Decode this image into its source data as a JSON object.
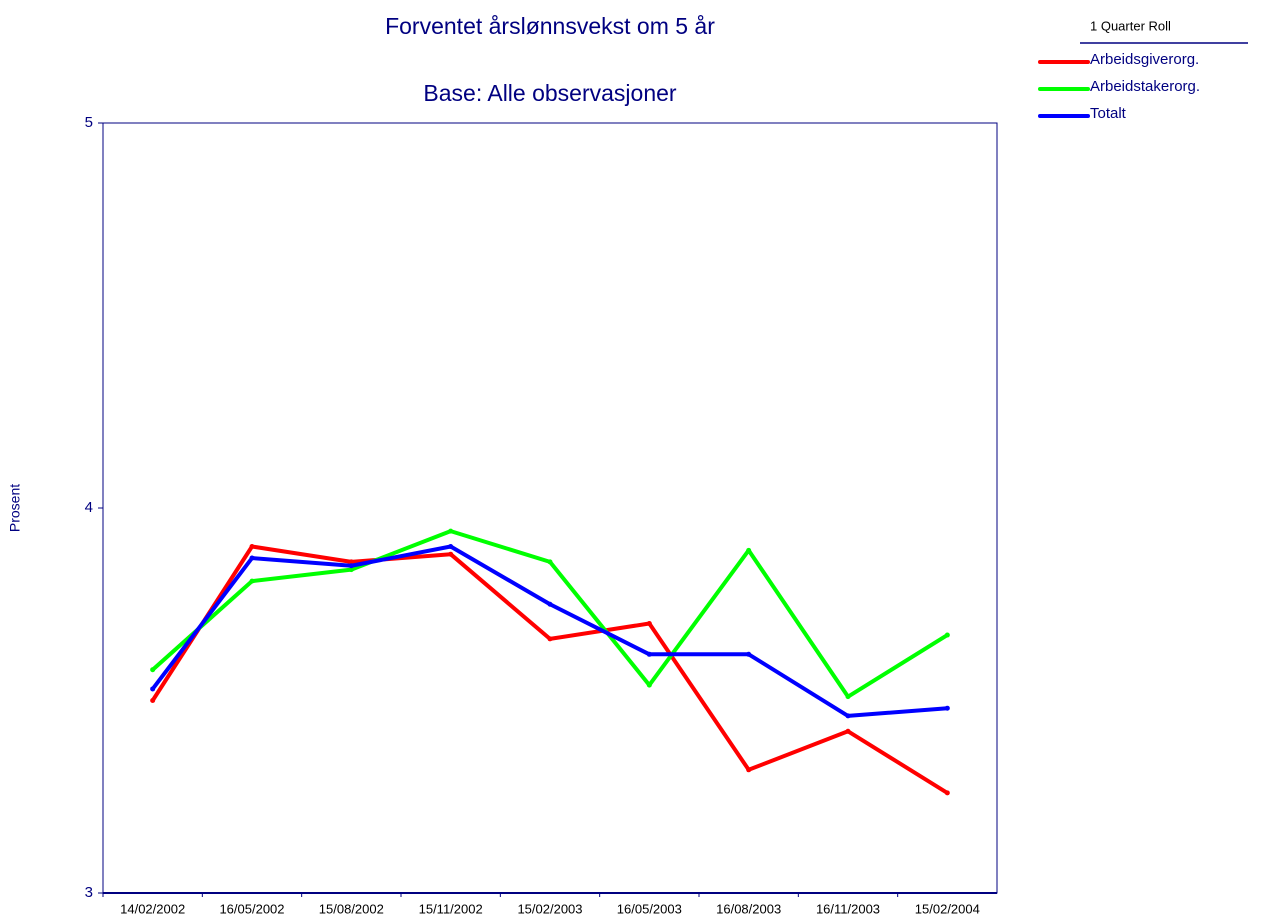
{
  "chart_data": {
    "type": "line",
    "title": "Forventet årslønnsvekst om 5 år",
    "subtitle": "Base: Alle observasjoner",
    "y_label": "Prosent",
    "legend_title": "1 Quarter Roll",
    "legend": "top-right",
    "categories": [
      "14/02/2002",
      "16/05/2002",
      "15/08/2002",
      "15/11/2002",
      "15/02/2003",
      "16/05/2003",
      "16/08/2003",
      "16/11/2003",
      "15/02/2004"
    ],
    "series": [
      {
        "name": "Arbeidsgiverorg.",
        "color": "#ff0000",
        "values": [
          3.5,
          3.9,
          3.86,
          3.88,
          3.66,
          3.7,
          3.32,
          3.42,
          3.26
        ]
      },
      {
        "name": "Arbeidstakerorg.",
        "color": "#00ff00",
        "values": [
          3.58,
          3.81,
          3.84,
          3.94,
          3.86,
          3.54,
          3.89,
          3.51,
          3.67
        ]
      },
      {
        "name": "Totalt",
        "color": "#0000ff",
        "values": [
          3.53,
          3.87,
          3.85,
          3.9,
          3.75,
          3.62,
          3.62,
          3.46,
          3.48
        ]
      }
    ],
    "ylim": [
      3,
      5
    ],
    "yticks": [
      3,
      4,
      5
    ],
    "grid": false
  }
}
